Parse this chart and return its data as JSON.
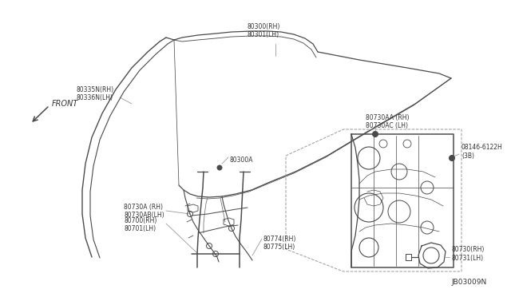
{
  "bg_color": "#ffffff",
  "line_color": "#4a4a4a",
  "text_color": "#333333",
  "gray_text": "#777777",
  "diagram_code": "JB03009N",
  "labels": {
    "front_arrow": "FRONT",
    "p80335N": "80335N(RH)\n80336N(LH)",
    "p80300": "80300(RH)\n80301(LH)",
    "p80300A": "80300A",
    "p80730A": "80730A (RH)\n80730AB(LH)",
    "p80700": "80700(RH)\n80701(LH)",
    "p80774": "80774(RH)\n80775(LH)",
    "p80730AA": "80730AA (RH)\n80730AC (LH)",
    "p08146": "08146-6122H\n(3B)",
    "p80730": "80730(RH)\n80731(LH)"
  },
  "dashed_line_color": "#999999",
  "lw": 0.9,
  "fs": 5.5
}
